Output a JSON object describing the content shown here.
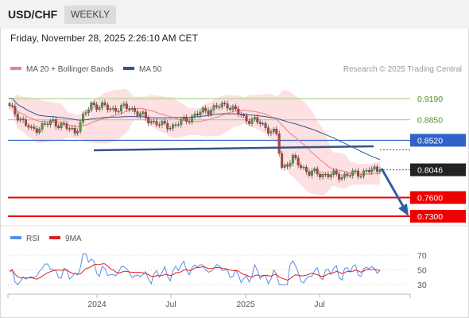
{
  "header": {
    "pair": "USD/CHF",
    "timeframe": "WEEKLY"
  },
  "date": "Friday, November 28, 2025 2:26:10 AM CET",
  "legend": {
    "ma20_label": "MA 20 + Bollinger Bands",
    "ma50_label": "MA 50",
    "copyright": "Research © 2025 Trading Central",
    "rsi_label": "RSI",
    "rsi_ma_label": "9MA"
  },
  "colors": {
    "ma20": "#f08080",
    "ma50": "#34558b",
    "bands": "#fbd5d8",
    "resistance_green": "#b5d58f",
    "pivot_blue": "#2f63c9",
    "support_red": "#ee0000",
    "candle_up": "#5a9a3a",
    "candle_down": "#b9403f",
    "trendline": "#34558b",
    "forecast_arrow": "#2f5fa8",
    "rsi": "#5b8ee6",
    "rsi_ma": "#e02020"
  },
  "chart_data": {
    "type": "candlestick",
    "x_tick_labels": [
      "2024",
      "Jul",
      "2025",
      "Jul"
    ],
    "y_range": [
      0.71,
      0.942
    ],
    "last_price": 0.8046,
    "levels": [
      {
        "value": 0.919,
        "label": "0.9190",
        "kind": "resistance"
      },
      {
        "value": 0.885,
        "label": "0.8850",
        "kind": "resistance"
      },
      {
        "value": 0.852,
        "label": "0.8520",
        "kind": "pivot"
      },
      {
        "value": 0.8046,
        "label": "0.8046",
        "kind": "last"
      },
      {
        "value": 0.76,
        "label": "0.7600",
        "kind": "support"
      },
      {
        "value": 0.73,
        "label": "0.7300",
        "kind": "support"
      }
    ],
    "rsi": {
      "levels": [
        70,
        50,
        30
      ],
      "range": [
        20,
        80
      ]
    }
  }
}
